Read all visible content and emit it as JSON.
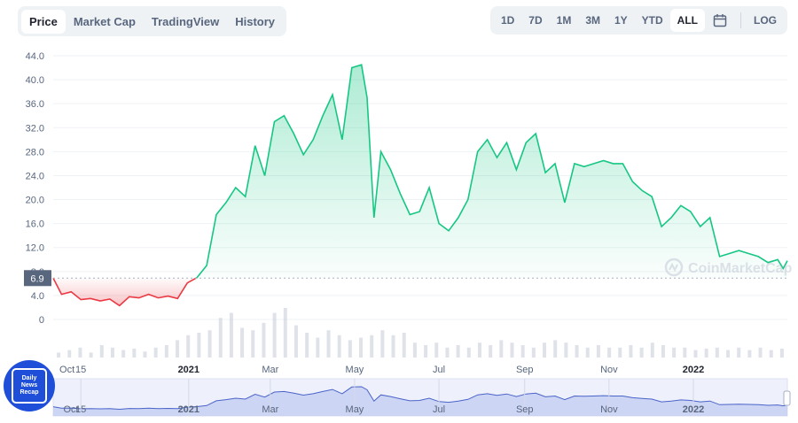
{
  "tabs": [
    {
      "label": "Price",
      "active": true
    },
    {
      "label": "Market Cap",
      "active": false
    },
    {
      "label": "TradingView",
      "active": false
    },
    {
      "label": "History",
      "active": false
    }
  ],
  "ranges": [
    {
      "label": "1D",
      "active": false
    },
    {
      "label": "7D",
      "active": false
    },
    {
      "label": "1M",
      "active": false
    },
    {
      "label": "3M",
      "active": false
    },
    {
      "label": "1Y",
      "active": false
    },
    {
      "label": "YTD",
      "active": false
    },
    {
      "label": "ALL",
      "active": true
    }
  ],
  "log_label": "LOG",
  "icons": {
    "calendar": "calendar-icon",
    "watermark": "coinmarketcap-logo"
  },
  "watermark": "CoinMarketCap",
  "badge": {
    "lines": [
      "Daily",
      "News",
      "Recap"
    ]
  },
  "colors": {
    "up": "#16c784",
    "down": "#ea3943",
    "badge": "#58667e"
  },
  "chart_data": {
    "type": "area",
    "y_ticks": [
      "0",
      "4.0",
      "8.0",
      "12.0",
      "16.0",
      "20.0",
      "24.0",
      "28.0",
      "32.0",
      "36.0",
      "40.0",
      "44.0"
    ],
    "ylim": [
      0,
      44
    ],
    "x_tick_labels": [
      "Oct",
      "15",
      "2021",
      "Mar",
      "May",
      "Jul",
      "Sep",
      "Nov",
      "2022"
    ],
    "baseline_value": 6.9,
    "current_price_label": "6.9",
    "series": [
      {
        "x": [
          "2020-09-25",
          "2020-10-01",
          "2020-10-08",
          "2020-10-15",
          "2020-10-22",
          "2020-10-29",
          "2020-11-05",
          "2020-11-12",
          "2020-11-19",
          "2020-11-26",
          "2020-12-03",
          "2020-12-10",
          "2020-12-17",
          "2020-12-24",
          "2020-12-31",
          "2021-01-07",
          "2021-01-14",
          "2021-01-21",
          "2021-01-28",
          "2021-02-04",
          "2021-02-11",
          "2021-02-18",
          "2021-02-25",
          "2021-03-04",
          "2021-03-11",
          "2021-03-18",
          "2021-03-25",
          "2021-04-01",
          "2021-04-08",
          "2021-04-15",
          "2021-04-22",
          "2021-04-29",
          "2021-05-06",
          "2021-05-10",
          "2021-05-15",
          "2021-05-20",
          "2021-05-27",
          "2021-06-03",
          "2021-06-10",
          "2021-06-17",
          "2021-06-24",
          "2021-07-01",
          "2021-07-08",
          "2021-07-15",
          "2021-07-22",
          "2021-07-29",
          "2021-08-05",
          "2021-08-12",
          "2021-08-19",
          "2021-08-26",
          "2021-09-02",
          "2021-09-09",
          "2021-09-16",
          "2021-09-23",
          "2021-09-30",
          "2021-10-07",
          "2021-10-14",
          "2021-10-21",
          "2021-10-28",
          "2021-11-04",
          "2021-11-11",
          "2021-11-18",
          "2021-11-25",
          "2021-12-02",
          "2021-12-09",
          "2021-12-16",
          "2021-12-23",
          "2021-12-30",
          "2022-01-06",
          "2022-01-13",
          "2022-01-20",
          "2022-01-27",
          "2022-02-03",
          "2022-02-10",
          "2022-02-17",
          "2022-02-24",
          "2022-03-03",
          "2022-03-07",
          "2022-03-10"
        ],
        "y": [
          6.9,
          4.2,
          4.6,
          3.3,
          3.5,
          3.1,
          3.4,
          2.3,
          3.8,
          3.6,
          4.2,
          3.6,
          3.9,
          3.5,
          6.1,
          7.0,
          9.0,
          17.5,
          19.5,
          22.0,
          20.5,
          29.0,
          24.0,
          33.0,
          34.0,
          31.0,
          27.5,
          30.0,
          34.0,
          37.5,
          30.0,
          42.0,
          42.5,
          37.0,
          17.0,
          28.0,
          25.0,
          21.0,
          17.5,
          18.0,
          22.0,
          16.0,
          14.8,
          17.0,
          20.0,
          28.0,
          30.0,
          27.0,
          29.5,
          25.0,
          29.5,
          31.0,
          24.5,
          26.0,
          19.5,
          26.0,
          25.5,
          26.0,
          26.5,
          26.0,
          26.0,
          23.0,
          21.5,
          20.5,
          15.5,
          17.0,
          19.0,
          18.0,
          15.5,
          17.0,
          10.5,
          11.0,
          11.5,
          11.0,
          10.5,
          9.5,
          10.0,
          8.5,
          9.8
        ]
      }
    ],
    "volume_relative": [
      0.1,
      0.15,
      0.2,
      0.1,
      0.25,
      0.2,
      0.15,
      0.18,
      0.12,
      0.2,
      0.25,
      0.35,
      0.45,
      0.5,
      0.55,
      0.8,
      0.9,
      0.6,
      0.55,
      0.7,
      0.9,
      1.0,
      0.65,
      0.5,
      0.4,
      0.55,
      0.45,
      0.35,
      0.4,
      0.45,
      0.55,
      0.45,
      0.5,
      0.3,
      0.25,
      0.3,
      0.2,
      0.25,
      0.2,
      0.3,
      0.25,
      0.35,
      0.3,
      0.25,
      0.2,
      0.3,
      0.35,
      0.3,
      0.25,
      0.2,
      0.25,
      0.2,
      0.2,
      0.25,
      0.2,
      0.3,
      0.25,
      0.2,
      0.2,
      0.15,
      0.18,
      0.2,
      0.15,
      0.2,
      0.15,
      0.2,
      0.15,
      0.18
    ]
  }
}
